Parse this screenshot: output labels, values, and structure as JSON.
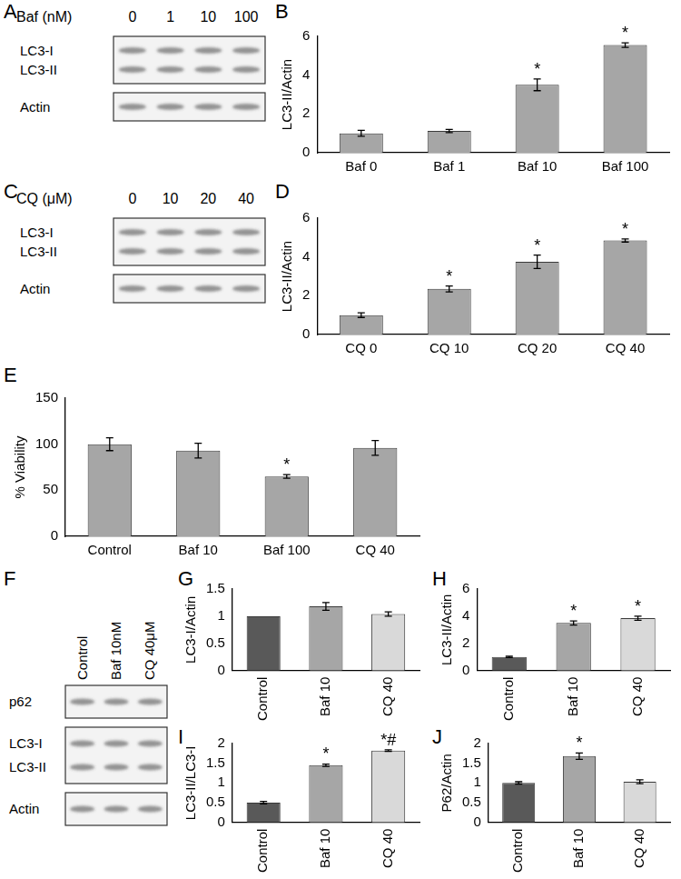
{
  "chart_data": [
    {
      "panel": "B",
      "type": "bar",
      "y_label": "LC3-II/Actin",
      "categories": [
        "Baf 0",
        "Baf 1",
        "Baf 10",
        "Baf 100"
      ],
      "values": [
        1.0,
        1.12,
        3.5,
        5.55
      ],
      "errors": [
        0.15,
        0.08,
        0.3,
        0.12
      ],
      "annotations": [
        null,
        null,
        "*",
        "*"
      ],
      "color": "#a6a6a6",
      "ylim": [
        0,
        6
      ],
      "yticks": [
        0,
        2,
        4,
        6
      ],
      "grid": false
    },
    {
      "panel": "D",
      "type": "bar",
      "y_label": "LC3-II/Actin",
      "categories": [
        "CQ 0",
        "CQ 10",
        "CQ 20",
        "CQ 40"
      ],
      "values": [
        1.0,
        2.35,
        3.75,
        4.85
      ],
      "errors": [
        0.12,
        0.15,
        0.35,
        0.08
      ],
      "annotations": [
        null,
        "*",
        "*",
        "*"
      ],
      "color": "#a6a6a6",
      "ylim": [
        0,
        6
      ],
      "yticks": [
        0,
        2,
        4,
        6
      ],
      "grid": false
    },
    {
      "panel": "E",
      "type": "bar",
      "y_label": "% Viability",
      "categories": [
        "Control",
        "Baf 10",
        "Baf 100",
        "CQ 40"
      ],
      "values": [
        100,
        93,
        65,
        96
      ],
      "errors": [
        7,
        8,
        2,
        8
      ],
      "annotations": [
        null,
        null,
        "*",
        null
      ],
      "color": "#a6a6a6",
      "ylim": [
        0,
        150
      ],
      "yticks": [
        0,
        50,
        100,
        150
      ],
      "grid": false
    },
    {
      "panel": "G",
      "type": "bar",
      "y_label": "LC3-I/Actin",
      "categories": [
        "Control",
        "Baf 10",
        "CQ 40"
      ],
      "values": [
        1.0,
        1.18,
        1.04
      ],
      "errors": [
        0,
        0.07,
        0.04
      ],
      "annotations": [
        null,
        null,
        null
      ],
      "colors": [
        "#595959",
        "#a6a6a6",
        "#d9d9d9"
      ],
      "ylim": [
        0,
        1.5
      ],
      "yticks": [
        0,
        0.5,
        1,
        1.5
      ],
      "grid": false
    },
    {
      "panel": "H",
      "type": "bar",
      "y_label": "LC3-II/Actin",
      "categories": [
        "Control",
        "Baf 10",
        "CQ 40"
      ],
      "values": [
        1.0,
        3.5,
        3.85
      ],
      "errors": [
        0.05,
        0.15,
        0.15
      ],
      "annotations": [
        null,
        "*",
        "*"
      ],
      "colors": [
        "#595959",
        "#a6a6a6",
        "#d9d9d9"
      ],
      "ylim": [
        0,
        6
      ],
      "yticks": [
        0,
        2,
        4,
        6
      ],
      "grid": false
    },
    {
      "panel": "I",
      "type": "bar",
      "y_label": "LC3-II/LC3-I",
      "categories": [
        "Control",
        "Baf 10",
        "CQ 40"
      ],
      "values": [
        0.5,
        1.45,
        1.82
      ],
      "errors": [
        0.03,
        0.03,
        0.02
      ],
      "annotations": [
        null,
        "*",
        "*#"
      ],
      "colors": [
        "#595959",
        "#a6a6a6",
        "#d9d9d9"
      ],
      "ylim": [
        0,
        2
      ],
      "yticks": [
        0,
        0.5,
        1,
        1.5,
        2
      ],
      "grid": false
    },
    {
      "panel": "J",
      "type": "bar",
      "y_label": "P62/Actin",
      "categories": [
        "Control",
        "Baf 10",
        "CQ 40"
      ],
      "values": [
        1.0,
        1.68,
        1.03
      ],
      "errors": [
        0.03,
        0.08,
        0.05
      ],
      "annotations": [
        null,
        "*",
        null
      ],
      "colors": [
        "#595959",
        "#a6a6a6",
        "#d9d9d9"
      ],
      "ylim": [
        0,
        2
      ],
      "yticks": [
        0,
        0.5,
        1,
        1.5,
        2
      ],
      "grid": false
    }
  ],
  "blots": [
    {
      "panel": "A",
      "treatment": "Baf (nM)",
      "lanes": [
        "0",
        "1",
        "10",
        "100"
      ],
      "boxes": [
        [
          "LC3-I",
          "LC3-II"
        ],
        [
          "Actin"
        ]
      ]
    },
    {
      "panel": "C",
      "treatment": "CQ (μM)",
      "lanes": [
        "0",
        "10",
        "20",
        "40"
      ],
      "boxes": [
        [
          "LC3-I",
          "LC3-II"
        ],
        [
          "Actin"
        ]
      ]
    },
    {
      "panel": "F",
      "lanes": [
        "Control",
        "Baf 10nM",
        "CQ 40μM"
      ],
      "boxes": [
        [
          "p62"
        ],
        [
          "LC3-I",
          "LC3-II"
        ],
        [
          "Actin"
        ]
      ]
    }
  ]
}
